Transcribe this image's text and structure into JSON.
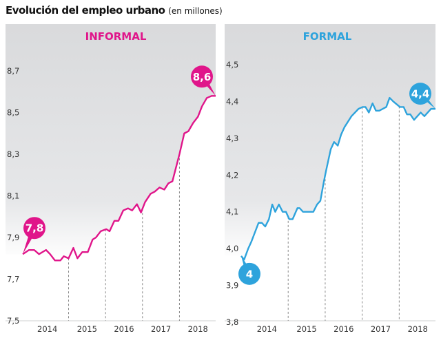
{
  "title": "Evolución del empleo urbano",
  "subtitle": "(en millones)",
  "chart_data": [
    {
      "type": "line",
      "title": "INFORMAL",
      "color": "#e0158a",
      "ylim": [
        7.5,
        8.8
      ],
      "yticks": [
        "7,5",
        "7,7",
        "7,9",
        "8,1",
        "8,3",
        "8,5",
        "8,7"
      ],
      "ytick_values": [
        7.5,
        7.7,
        7.9,
        8.1,
        8.3,
        8.5,
        8.7
      ],
      "xlim": [
        2013.6,
        2019.0
      ],
      "xticks": [
        "2014",
        "2015",
        "2016",
        "2017",
        "2018"
      ],
      "year_dividers": [
        2015,
        2016,
        2017,
        2018
      ],
      "x": [
        2013.76,
        2013.93,
        2014.07,
        2014.2,
        2014.39,
        2014.5,
        2014.63,
        2014.78,
        2014.87,
        2015.0,
        2015.13,
        2015.24,
        2015.37,
        2015.52,
        2015.65,
        2015.74,
        2015.87,
        2016.02,
        2016.11,
        2016.24,
        2016.35,
        2016.48,
        2016.61,
        2016.72,
        2016.85,
        2016.96,
        2017.07,
        2017.22,
        2017.33,
        2017.46,
        2017.59,
        2017.7,
        2017.81,
        2018.0,
        2018.13,
        2018.24,
        2018.37,
        2018.5,
        2018.61,
        2018.74,
        2018.87,
        2018.98
      ],
      "y": [
        7.82,
        7.84,
        7.84,
        7.82,
        7.84,
        7.82,
        7.79,
        7.79,
        7.81,
        7.8,
        7.85,
        7.8,
        7.83,
        7.83,
        7.89,
        7.9,
        7.93,
        7.94,
        7.93,
        7.98,
        7.98,
        8.03,
        8.04,
        8.03,
        8.06,
        8.02,
        8.07,
        8.11,
        8.12,
        8.14,
        8.13,
        8.16,
        8.17,
        8.3,
        8.4,
        8.41,
        8.45,
        8.48,
        8.53,
        8.57,
        8.58,
        8.58
      ],
      "annotations": [
        {
          "label": "7,8",
          "x": 2013.76,
          "y": 7.82
        },
        {
          "label": "8,6",
          "x": 2018.98,
          "y": 8.58
        }
      ]
    },
    {
      "type": "line",
      "title": "FORMAL",
      "color": "#2ea3dc",
      "ylim": [
        3.8,
        4.57
      ],
      "yticks": [
        "3,8",
        "3,9",
        "4,0",
        "4,1",
        "4,2",
        "4,3",
        "4,4",
        "4,5"
      ],
      "ytick_values": [
        3.8,
        3.9,
        4.0,
        4.1,
        4.2,
        4.3,
        4.4,
        4.5
      ],
      "xlim": [
        2013.6,
        2019.0
      ],
      "xticks": [
        "2014",
        "2015",
        "2016",
        "2017",
        "2018"
      ],
      "year_dividers": [
        2015,
        2016,
        2017,
        2018
      ],
      "x": [
        2013.73,
        2013.81,
        2013.92,
        2014.01,
        2014.2,
        2014.29,
        2014.38,
        2014.48,
        2014.57,
        2014.65,
        2014.75,
        2014.85,
        2014.94,
        2015.03,
        2015.12,
        2015.25,
        2015.31,
        2015.4,
        2015.53,
        2015.62,
        2015.68,
        2015.78,
        2015.87,
        2015.96,
        2016.02,
        2016.15,
        2016.24,
        2016.34,
        2016.43,
        2016.52,
        2016.71,
        2016.9,
        2017.01,
        2017.09,
        2017.18,
        2017.28,
        2017.37,
        2017.46,
        2017.65,
        2017.74,
        2017.84,
        2018.02,
        2018.12,
        2018.21,
        2018.3,
        2018.4,
        2018.49,
        2018.58,
        2018.68,
        2018.77,
        2018.86,
        2018.98
      ],
      "y": [
        3.98,
        3.97,
        4.0,
        4.02,
        4.07,
        4.07,
        4.06,
        4.08,
        4.12,
        4.1,
        4.12,
        4.1,
        4.1,
        4.08,
        4.08,
        4.11,
        4.11,
        4.1,
        4.1,
        4.1,
        4.1,
        4.12,
        4.13,
        4.18,
        4.21,
        4.27,
        4.29,
        4.28,
        4.31,
        4.33,
        4.36,
        4.38,
        4.385,
        4.385,
        4.37,
        4.395,
        4.375,
        4.375,
        4.385,
        4.41,
        4.4,
        4.385,
        4.385,
        4.365,
        4.365,
        4.35,
        4.36,
        4.37,
        4.36,
        4.37,
        4.38,
        4.38
      ],
      "annotations": [
        {
          "label": "4",
          "x": 2013.73,
          "y": 3.98
        },
        {
          "label": "4,4",
          "x": 2018.98,
          "y": 4.38
        }
      ]
    }
  ]
}
